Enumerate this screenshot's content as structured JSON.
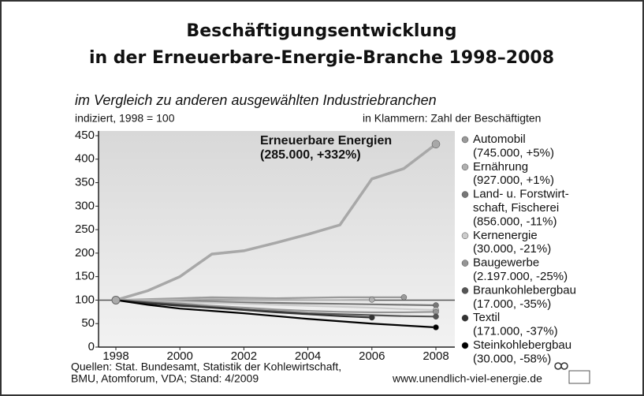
{
  "chart_data": {
    "type": "line",
    "title": [
      "Beschäftigungsentwicklung",
      "in der Erneuerbare-Energie-Branche 1998–2008"
    ],
    "subtitle": "im Vergleich zu anderen ausgewählten Industriebranchen",
    "y_label": "indiziert, 1998 = 100",
    "legend_title": "in Klammern: Zahl  der Beschäftigten",
    "source": [
      "Quellen: Stat. Bundesamt, Statistik der Kohlewirtschaft,",
      "BMU, Atomforum, VDA; Stand: 4/2009"
    ],
    "url": "www.unendlich-viel-energie.de",
    "x": [
      1998,
      1999,
      2000,
      2001,
      2002,
      2003,
      2004,
      2005,
      2006,
      2007,
      2008
    ],
    "xlim": [
      1998,
      2008
    ],
    "xticks": [
      1998,
      2000,
      2002,
      2004,
      2006,
      2008
    ],
    "ylim": [
      0,
      450
    ],
    "yticks": [
      0,
      50,
      100,
      150,
      200,
      250,
      300,
      350,
      400,
      450
    ],
    "reference_line": 100,
    "grid": false,
    "legend": "right",
    "series": [
      {
        "name": "Erneuerbare Energien",
        "detail": "(285.000, +332%)",
        "color": "#a8a8a8",
        "annotation": true,
        "values": [
          100,
          120,
          150,
          198,
          205,
          222,
          240,
          260,
          358,
          380,
          432
        ]
      },
      {
        "name": "Automobil",
        "detail": "(745.000, +5%)",
        "color": "#9a9a9a",
        "values": [
          100,
          102,
          104,
          106,
          105,
          104,
          105,
          106,
          106,
          106,
          null
        ]
      },
      {
        "name": "Ernährung",
        "detail": "(927.000, +1%)",
        "color": "#b0b0b0",
        "values": [
          100,
          101,
          101,
          102,
          101,
          101,
          100,
          100,
          101,
          null,
          null
        ]
      },
      {
        "name": "Land- u. Forstwirt-\nschaft, Fischerei",
        "detail": "(856.000, -11%)",
        "color": "#777777",
        "values": [
          100,
          98,
          97,
          96,
          95,
          94,
          93,
          92,
          91,
          90,
          89
        ]
      },
      {
        "name": "Kernenergie",
        "detail": "(30.000, -21%)",
        "color": "#cccccc",
        "values": [
          100,
          98,
          96,
          94,
          92,
          90,
          88,
          86,
          84,
          81,
          79
        ]
      },
      {
        "name": "Baugewerbe",
        "detail": "(2.197.000, -25%)",
        "color": "#959595",
        "values": [
          100,
          97,
          93,
          88,
          84,
          80,
          77,
          75,
          74,
          74,
          75
        ]
      },
      {
        "name": "Braunkohlebergbau",
        "detail": "(17.000, -35%)",
        "color": "#555555",
        "values": [
          100,
          95,
          90,
          85,
          80,
          76,
          72,
          70,
          68,
          66,
          65
        ]
      },
      {
        "name": "Textil",
        "detail": "(171.000, -37%)",
        "color": "#333333",
        "values": [
          100,
          93,
          88,
          84,
          79,
          74,
          70,
          66,
          63,
          null,
          null
        ]
      },
      {
        "name": "Steinkohlebergbau",
        "detail": "(30.000, -58%)",
        "color": "#000000",
        "values": [
          100,
          90,
          82,
          77,
          72,
          66,
          60,
          55,
          50,
          46,
          42
        ]
      }
    ]
  }
}
